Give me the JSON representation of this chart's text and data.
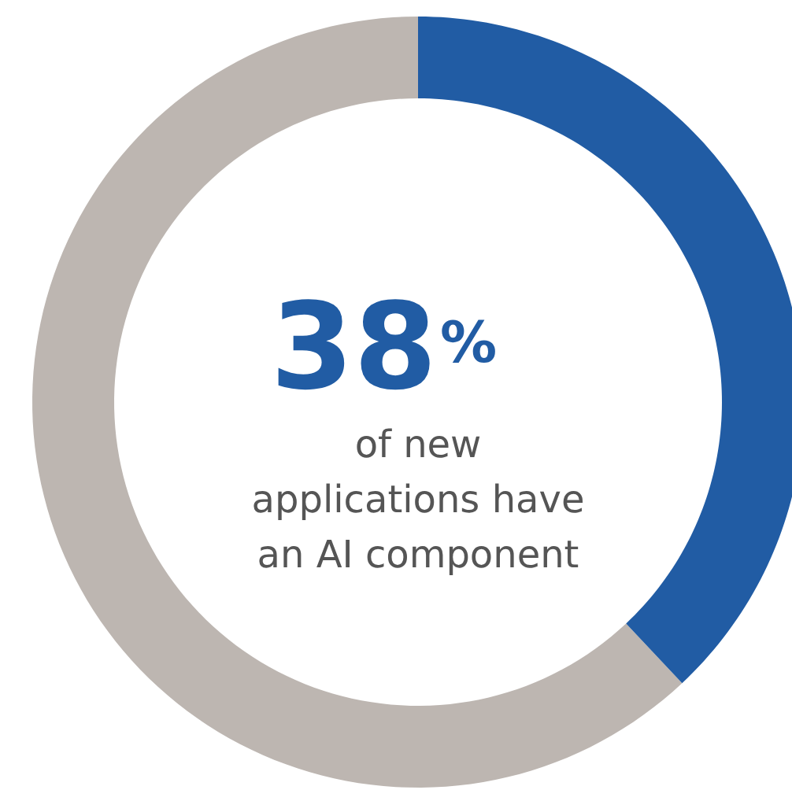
{
  "chart_data": {
    "type": "donut",
    "categories": [
      null,
      null
    ],
    "values": [
      38,
      62
    ],
    "colors": [
      "#215ca4",
      "#bdb6b1"
    ],
    "annotations": [
      "38%",
      "of new\napplications have\nan AI component"
    ]
  }
}
